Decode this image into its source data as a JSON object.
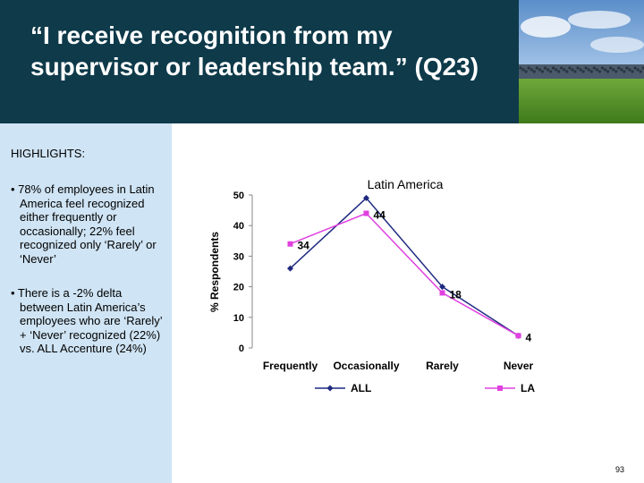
{
  "header": {
    "title": "“I receive recognition from my supervisor or leadership team.” (Q23)"
  },
  "highlights": {
    "title": "HIGHLIGHTS:",
    "bullets": [
      "• 78% of employees in Latin America feel recognized either frequently or occasionally; 22% feel recognized only ‘Rarely’ or ‘Never’",
      "• There is a -2% delta between Latin America’s employees who are ‘Rarely’ + ‘Never’ recognized (22%) vs. ALL Accenture (24%)"
    ]
  },
  "page_number": "93",
  "colors": {
    "header_bg": "#0e3a4a",
    "sidebar_bg": "#cfe4f4",
    "series_all": "#1f2a80",
    "series_la": "#e040e0"
  },
  "chart_data": {
    "type": "line",
    "title": "Latin America",
    "ylabel": "% Respondents",
    "xlabel": "",
    "categories": [
      "Frequently",
      "Occasionally",
      "Rarely",
      "Never"
    ],
    "ylim": [
      0,
      50
    ],
    "yticks": [
      "0",
      "10",
      "20",
      "30",
      "40",
      "50"
    ],
    "grid": false,
    "legend_position": "bottom",
    "series": [
      {
        "name": "ALL",
        "values": [
          26,
          49,
          20,
          4
        ],
        "marker": "diamond",
        "color": "#1f2a80",
        "labels": false
      },
      {
        "name": "LA",
        "values": [
          34,
          44,
          18,
          4
        ],
        "marker": "square",
        "color": "#e040e0",
        "labels": true,
        "label_text": [
          "34",
          "44",
          "18",
          "4"
        ]
      }
    ]
  }
}
